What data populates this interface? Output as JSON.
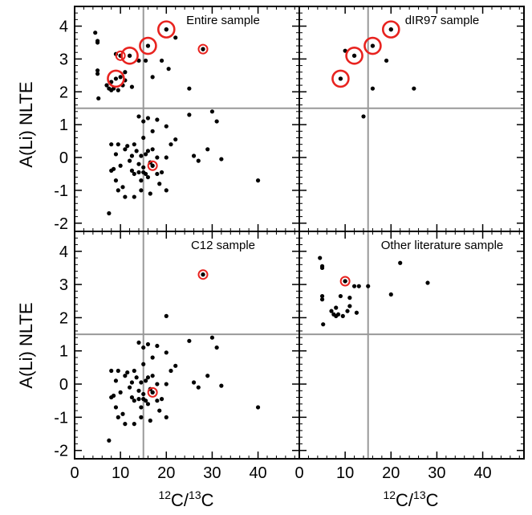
{
  "figure": {
    "ylabel": "A(Li) NLTE",
    "xlabel_prefix_sup": "12",
    "xlabel_mid": "C/",
    "xlabel_sup2": "13",
    "xlabel_suffix": "C",
    "xticks": [
      "0",
      "10",
      "20",
      "30",
      "40"
    ],
    "yticks": [
      "-2",
      "-1",
      "0",
      "1",
      "2",
      "3",
      "4"
    ]
  },
  "chart_data": [
    {
      "type": "scatter",
      "title": "Entire sample",
      "xlim": [
        0,
        49
      ],
      "ylim": [
        -2.25,
        4.6
      ],
      "reference_lines": {
        "x": 15,
        "y": 1.5
      },
      "points": [
        [
          4.5,
          3.8
        ],
        [
          5,
          3.55
        ],
        [
          5,
          3.5
        ],
        [
          5,
          2.65
        ],
        [
          5,
          2.55
        ],
        [
          5.2,
          1.8
        ],
        [
          7,
          2.2
        ],
        [
          7.5,
          2.1
        ],
        [
          8,
          2.05
        ],
        [
          8,
          2.3
        ],
        [
          8.5,
          2.1
        ],
        [
          9,
          3.15
        ],
        [
          9.5,
          2.05
        ],
        [
          10,
          3.1
        ],
        [
          10.5,
          2.2
        ],
        [
          11,
          2.35
        ],
        [
          11,
          2.6
        ],
        [
          12,
          3.1
        ],
        [
          12.5,
          2.15
        ],
        [
          14,
          2.95
        ],
        [
          15.5,
          2.95
        ],
        [
          16,
          3.4
        ],
        [
          17,
          2.45
        ],
        [
          19,
          2.95
        ],
        [
          20,
          3.9
        ],
        [
          20.5,
          2.7
        ],
        [
          22,
          3.65
        ],
        [
          25,
          2.1
        ],
        [
          28,
          3.3
        ],
        [
          10,
          2.45
        ],
        [
          14,
          1.25
        ],
        [
          15,
          1.1
        ],
        [
          16,
          1.2
        ],
        [
          15,
          0.6
        ],
        [
          18,
          1.15
        ],
        [
          17,
          0.8
        ],
        [
          20,
          0.95
        ],
        [
          21,
          0.4
        ],
        [
          22,
          0.55
        ],
        [
          25,
          1.3
        ],
        [
          26,
          0.05
        ],
        [
          27,
          -0.1
        ],
        [
          29,
          0.25
        ],
        [
          30,
          1.4
        ],
        [
          31,
          1.1
        ],
        [
          32,
          -0.05
        ],
        [
          40,
          -0.7
        ],
        [
          7.5,
          -1.7
        ],
        [
          8,
          0.4
        ],
        [
          8,
          -0.4
        ],
        [
          8.5,
          -0.35
        ],
        [
          9,
          -0.7
        ],
        [
          9,
          0.1
        ],
        [
          9.5,
          -1.0
        ],
        [
          9.5,
          0.4
        ],
        [
          10,
          -0.25
        ],
        [
          10.5,
          -0.9
        ],
        [
          11,
          -1.2
        ],
        [
          11,
          0.25
        ],
        [
          11.5,
          0.35
        ],
        [
          12,
          -0.1
        ],
        [
          12.5,
          -0.4
        ],
        [
          12.5,
          0.05
        ],
        [
          13,
          -0.5
        ],
        [
          13,
          0.4
        ],
        [
          13,
          -1.2
        ],
        [
          13.5,
          0.2
        ],
        [
          14,
          -0.45
        ],
        [
          14,
          -0.2
        ],
        [
          14.5,
          0.05
        ],
        [
          14.5,
          -0.7
        ],
        [
          14.5,
          -1.0
        ],
        [
          15,
          -0.3
        ],
        [
          15,
          -0.45
        ],
        [
          15.5,
          0.1
        ],
        [
          15.5,
          -0.5
        ],
        [
          16,
          0.2
        ],
        [
          16,
          -0.6
        ],
        [
          16.5,
          -0.15
        ],
        [
          16.5,
          -1.1
        ],
        [
          17,
          -0.25
        ],
        [
          17,
          0.25
        ],
        [
          18,
          0.0
        ],
        [
          18,
          -0.5
        ],
        [
          18.5,
          -0.8
        ],
        [
          19,
          -0.45
        ],
        [
          20,
          0.0
        ],
        [
          20,
          -1.0
        ]
      ],
      "highlighted": [
        {
          "x": 9,
          "y": 2.4,
          "size": "large"
        },
        {
          "x": 10,
          "y": 3.1,
          "size": "small"
        },
        {
          "x": 12,
          "y": 3.1,
          "size": "large"
        },
        {
          "x": 16,
          "y": 3.4,
          "size": "large"
        },
        {
          "x": 20,
          "y": 3.9,
          "size": "large"
        },
        {
          "x": 28,
          "y": 3.3,
          "size": "small"
        },
        {
          "x": 17,
          "y": -0.25,
          "size": "small"
        }
      ]
    },
    {
      "type": "scatter",
      "title": "dIR97 sample",
      "xlim": [
        0,
        49
      ],
      "ylim": [
        -2.25,
        4.6
      ],
      "reference_lines": {
        "x": 15,
        "y": 1.5
      },
      "points": [
        [
          9,
          2.4
        ],
        [
          10,
          3.25
        ],
        [
          12,
          3.1
        ],
        [
          16,
          3.4
        ],
        [
          16,
          2.1
        ],
        [
          19,
          2.95
        ],
        [
          20,
          3.9
        ],
        [
          25,
          2.1
        ],
        [
          14,
          1.25
        ]
      ],
      "highlighted": [
        {
          "x": 9,
          "y": 2.4,
          "size": "large"
        },
        {
          "x": 12,
          "y": 3.1,
          "size": "large"
        },
        {
          "x": 16,
          "y": 3.4,
          "size": "large"
        },
        {
          "x": 20,
          "y": 3.9,
          "size": "large"
        }
      ]
    },
    {
      "type": "scatter",
      "title": "C12 sample",
      "xlim": [
        0,
        49
      ],
      "ylim": [
        -2.25,
        4.6
      ],
      "reference_lines": {
        "x": 15,
        "y": 1.5
      },
      "points": [
        [
          28,
          3.3
        ],
        [
          20,
          2.05
        ],
        [
          14,
          1.25
        ],
        [
          15,
          1.1
        ],
        [
          16,
          1.2
        ],
        [
          15,
          0.6
        ],
        [
          18,
          1.15
        ],
        [
          17,
          0.8
        ],
        [
          20,
          0.95
        ],
        [
          21,
          0.4
        ],
        [
          22,
          0.55
        ],
        [
          25,
          1.3
        ],
        [
          26,
          0.05
        ],
        [
          27,
          -0.1
        ],
        [
          29,
          0.25
        ],
        [
          30,
          1.4
        ],
        [
          31,
          1.1
        ],
        [
          32,
          -0.05
        ],
        [
          40,
          -0.7
        ],
        [
          7.5,
          -1.7
        ],
        [
          8,
          0.4
        ],
        [
          8,
          -0.4
        ],
        [
          8.5,
          -0.35
        ],
        [
          9,
          -0.7
        ],
        [
          9,
          0.1
        ],
        [
          9.5,
          -1.0
        ],
        [
          9.5,
          0.4
        ],
        [
          10,
          -0.25
        ],
        [
          10.5,
          -0.9
        ],
        [
          11,
          -1.2
        ],
        [
          11,
          0.25
        ],
        [
          11.5,
          0.35
        ],
        [
          12,
          -0.1
        ],
        [
          12.5,
          -0.4
        ],
        [
          12.5,
          0.05
        ],
        [
          13,
          -0.5
        ],
        [
          13,
          0.4
        ],
        [
          13,
          -1.2
        ],
        [
          13.5,
          0.2
        ],
        [
          14,
          -0.45
        ],
        [
          14,
          -0.2
        ],
        [
          14.5,
          0.05
        ],
        [
          14.5,
          -0.7
        ],
        [
          14.5,
          -1.0
        ],
        [
          15,
          -0.3
        ],
        [
          15,
          -0.45
        ],
        [
          15.5,
          0.1
        ],
        [
          15.5,
          -0.5
        ],
        [
          16,
          0.2
        ],
        [
          16,
          -0.6
        ],
        [
          16.5,
          -0.15
        ],
        [
          16.5,
          -1.1
        ],
        [
          17,
          -0.25
        ],
        [
          17,
          0.25
        ],
        [
          18,
          0.0
        ],
        [
          18,
          -0.5
        ],
        [
          18.5,
          -0.8
        ],
        [
          19,
          -0.45
        ],
        [
          20,
          0.0
        ],
        [
          20,
          -1.0
        ]
      ],
      "highlighted": [
        {
          "x": 28,
          "y": 3.3,
          "size": "small"
        },
        {
          "x": 17,
          "y": -0.25,
          "size": "small"
        }
      ]
    },
    {
      "type": "scatter",
      "title": "Other literature sample",
      "xlim": [
        0,
        49
      ],
      "ylim": [
        -2.25,
        4.6
      ],
      "reference_lines": {
        "x": 15,
        "y": 1.5
      },
      "points": [
        [
          4.5,
          3.8
        ],
        [
          5,
          3.55
        ],
        [
          5,
          3.5
        ],
        [
          5,
          2.65
        ],
        [
          5,
          2.55
        ],
        [
          5.2,
          1.8
        ],
        [
          7,
          2.2
        ],
        [
          7.5,
          2.1
        ],
        [
          8,
          2.05
        ],
        [
          8,
          2.3
        ],
        [
          8.5,
          2.1
        ],
        [
          9,
          2.65
        ],
        [
          9.5,
          2.05
        ],
        [
          10,
          3.1
        ],
        [
          10.5,
          2.2
        ],
        [
          11,
          2.35
        ],
        [
          11,
          2.6
        ],
        [
          12,
          2.95
        ],
        [
          12.5,
          2.15
        ],
        [
          13,
          2.95
        ],
        [
          15,
          2.95
        ],
        [
          20,
          2.7
        ],
        [
          22,
          3.65
        ],
        [
          28,
          3.05
        ]
      ],
      "highlighted": [
        {
          "x": 10,
          "y": 3.1,
          "size": "small"
        }
      ]
    }
  ],
  "colors": {
    "highlight": "#e8231f",
    "points": "#000000",
    "reference": "#999999"
  }
}
